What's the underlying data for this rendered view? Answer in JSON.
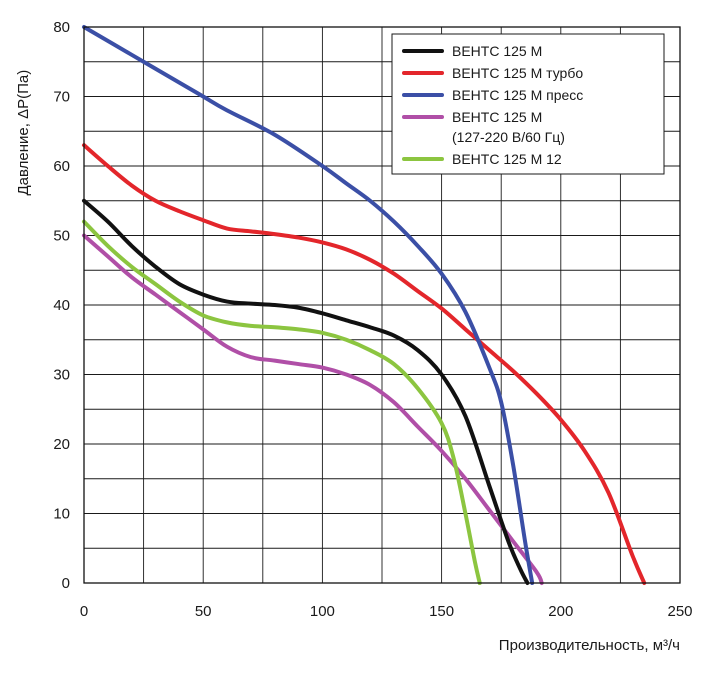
{
  "chart_data": {
    "type": "line",
    "title": "",
    "xlabel": "Производительность, м³/ч",
    "ylabel": "Давление, ΔР(Па)",
    "xlim": [
      0,
      250
    ],
    "ylim": [
      0,
      80
    ],
    "x_major_ticks": [
      0,
      50,
      100,
      150,
      200,
      250
    ],
    "y_major_ticks": [
      0,
      10,
      20,
      30,
      40,
      50,
      60,
      70,
      80
    ],
    "grid": true,
    "legend_position": "top-right",
    "series": [
      {
        "name": "ВЕНТС 125 М",
        "color": "#111111",
        "x": [
          0,
          10,
          20,
          30,
          40,
          50,
          60,
          70,
          80,
          90,
          100,
          110,
          120,
          130,
          140,
          150,
          160,
          170,
          178,
          183,
          186
        ],
        "y": [
          55,
          52,
          48.5,
          45.5,
          43,
          41.5,
          40.5,
          40.2,
          40,
          39.6,
          38.8,
          37.8,
          36.8,
          35.6,
          33.5,
          30,
          24,
          14,
          6,
          2,
          0
        ]
      },
      {
        "name": "ВЕНТС 125 М турбо",
        "color": "#e3262b",
        "x": [
          0,
          10,
          20,
          30,
          40,
          50,
          60,
          70,
          80,
          90,
          100,
          110,
          120,
          130,
          140,
          150,
          160,
          170,
          180,
          190,
          200,
          210,
          220,
          230,
          235
        ],
        "y": [
          63,
          60,
          57.2,
          55,
          53.5,
          52.2,
          51,
          50.6,
          50.2,
          49.7,
          49,
          48,
          46.5,
          44.5,
          42,
          39.5,
          36.5,
          33.5,
          30.5,
          27.2,
          23.5,
          19,
          13,
          4,
          0
        ]
      },
      {
        "name": "ВЕНТС 125 М пресс",
        "color": "#3b4fa6",
        "x": [
          0,
          20,
          40,
          50,
          60,
          80,
          100,
          110,
          120,
          130,
          140,
          150,
          160,
          170,
          175,
          180,
          185,
          188
        ],
        "y": [
          80,
          76,
          72,
          70,
          68,
          64.5,
          60,
          57.5,
          55,
          52,
          48.5,
          44.5,
          39,
          31,
          26,
          17,
          6,
          0
        ]
      },
      {
        "name": "ВЕНТС 125 М",
        "name_line2": "(127-220 В/60 Гц)",
        "color": "#b04fa7",
        "x": [
          0,
          10,
          20,
          30,
          40,
          50,
          60,
          70,
          80,
          90,
          100,
          110,
          120,
          130,
          140,
          150,
          160,
          170,
          180,
          190,
          192
        ],
        "y": [
          50,
          47,
          44,
          41.5,
          39,
          36.5,
          34,
          32.5,
          32,
          31.5,
          31,
          30,
          28.5,
          26,
          22.5,
          19,
          15,
          10.5,
          6,
          1.5,
          0
        ]
      },
      {
        "name": "ВЕНТС 125 М 12",
        "color": "#8cc540",
        "x": [
          0,
          10,
          20,
          30,
          40,
          50,
          60,
          70,
          80,
          90,
          100,
          110,
          120,
          130,
          140,
          150,
          155,
          160,
          164,
          166
        ],
        "y": [
          52,
          48.5,
          45.5,
          43,
          40.5,
          38.5,
          37.5,
          37,
          36.8,
          36.5,
          36,
          35,
          33.5,
          31.5,
          28,
          23,
          18,
          10,
          3,
          0
        ]
      }
    ]
  }
}
